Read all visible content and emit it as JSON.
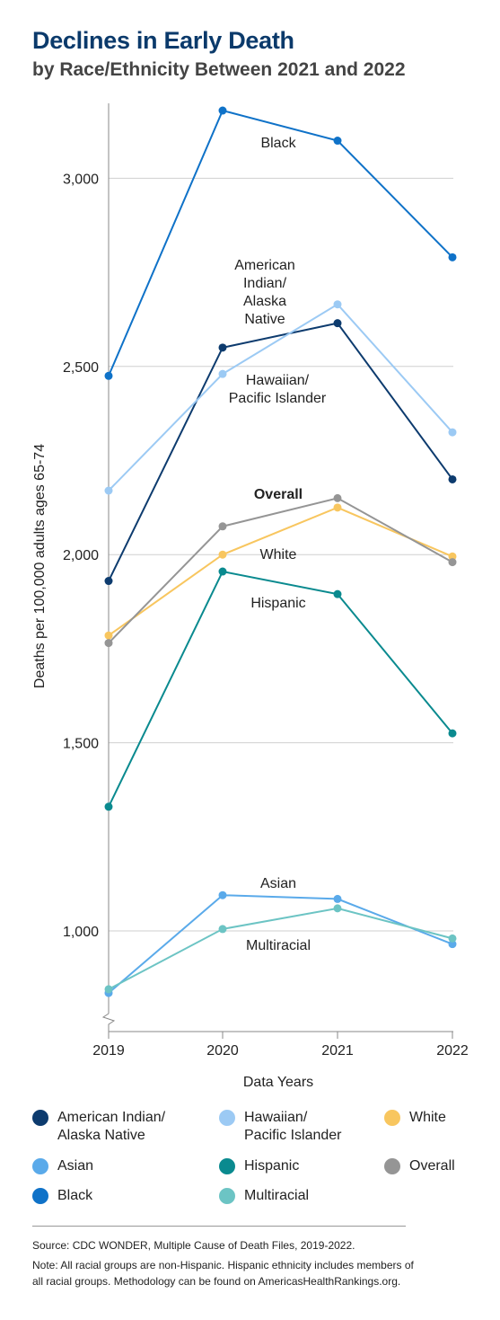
{
  "header": {
    "title": "Declines in Early Death",
    "subtitle": "by Race/Ethnicity Between 2021 and 2022"
  },
  "chart_data": {
    "type": "line",
    "title": "Declines in Early Death",
    "subtitle": "by Race/Ethnicity Between 2021 and 2022",
    "xlabel": "Data Years",
    "ylabel": "Deaths per 100,000 adults ages 65-74",
    "x": [
      "2019",
      "2020",
      "2021",
      "2022"
    ],
    "yticks": [
      {
        "value": 1000,
        "label": "1,000"
      },
      {
        "value": 1500,
        "label": "1,500"
      },
      {
        "value": 2000,
        "label": "2,000"
      },
      {
        "value": 2500,
        "label": "2,500"
      },
      {
        "value": 3000,
        "label": "3,000"
      }
    ],
    "ylim": [
      750,
      3200
    ],
    "axis_break": true,
    "grid": true,
    "legend_placement": "bottom",
    "series": [
      {
        "name": "American Indian/\nAlaska Native",
        "color": "#0d3b6e",
        "values": [
          1930,
          2550,
          2615,
          2200
        ]
      },
      {
        "name": "Hawaiian/\nPacific Islander",
        "color": "#9ccaf4",
        "values": [
          2170,
          2480,
          2665,
          2325
        ]
      },
      {
        "name": "White",
        "color": "#f8c65f",
        "values": [
          1785,
          2000,
          2125,
          1995
        ]
      },
      {
        "name": "Asian",
        "color": "#5aaaea",
        "values": [
          835,
          1095,
          1085,
          965
        ]
      },
      {
        "name": "Hispanic",
        "color": "#0a8a8f",
        "values": [
          1330,
          1955,
          1895,
          1525
        ]
      },
      {
        "name": "Overall",
        "color": "#959595",
        "values": [
          1765,
          2075,
          2150,
          1980
        ]
      },
      {
        "name": "Black",
        "color": "#0f72c8",
        "values": [
          2475,
          3180,
          3100,
          2790
        ]
      },
      {
        "name": "Multiracial",
        "color": "#6cc4c4",
        "values": [
          845,
          1005,
          1060,
          980
        ]
      }
    ],
    "annotations": [
      {
        "series": "Black",
        "text": "Black"
      },
      {
        "series": "American Indian/\nAlaska Native",
        "text": "American\nIndian/\nAlaska\nNative"
      },
      {
        "series": "Hawaiian/\nPacific Islander",
        "text": "Hawaiian/\nPacific Islander"
      },
      {
        "series": "Overall",
        "text": "Overall"
      },
      {
        "series": "White",
        "text": "White"
      },
      {
        "series": "Hispanic",
        "text": "Hispanic"
      },
      {
        "series": "Asian",
        "text": "Asian"
      },
      {
        "series": "Multiracial",
        "text": "Multiracial"
      }
    ]
  },
  "footer": {
    "source": "Source: CDC WONDER, Multiple Cause of Death Files, 2019-2022.",
    "note": "Note: All racial groups are non-Hispanic. Hispanic ethnicity includes members of all racial groups. Methodology can be found on AmericasHealthRankings.org."
  }
}
